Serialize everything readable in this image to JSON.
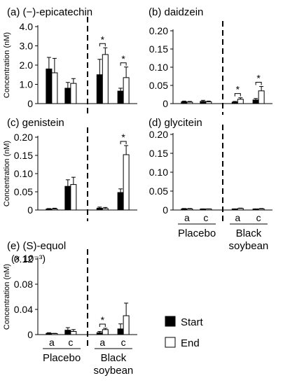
{
  "y_axis_label": "Concentration (nM)",
  "legend": {
    "start": "Start",
    "end": "End"
  },
  "group_labels": {
    "placebo": "Placebo",
    "black_soybean_line1": "Black",
    "black_soybean_line2": "soybean"
  },
  "sub_labels": {
    "a": "a",
    "c": "c"
  },
  "significance_mark": "*",
  "chart_data": [
    {
      "id": "a",
      "type": "bar",
      "title": "(a) (−)-epicatechin",
      "ylim": [
        0,
        4.0
      ],
      "yticks": [
        "0",
        "1.0",
        "2.0",
        "3.0",
        "4.0"
      ],
      "categories": [
        "Placebo a",
        "Placebo c",
        "Black soybean a",
        "Black soybean c"
      ],
      "series": [
        {
          "name": "Start",
          "values": [
            1.8,
            0.8,
            1.5,
            0.65
          ],
          "errors": [
            0.6,
            0.3,
            0.8,
            0.15
          ]
        },
        {
          "name": "End",
          "values": [
            1.6,
            1.05,
            2.55,
            1.35
          ],
          "errors": [
            0.75,
            0.25,
            0.35,
            0.55
          ]
        }
      ],
      "significant": [
        2,
        3
      ]
    },
    {
      "id": "b",
      "type": "bar",
      "title": "(b) daidzein",
      "ylim": [
        0,
        0.2
      ],
      "yticks": [
        "0",
        "0.05",
        "0.10",
        "0.15",
        "0.20"
      ],
      "categories": [
        "Placebo a",
        "Placebo c",
        "Black soybean a",
        "Black soybean c"
      ],
      "series": [
        {
          "name": "Start",
          "values": [
            0.005,
            0.006,
            0.004,
            0.01
          ],
          "errors": [
            0.002,
            0.003,
            0.002,
            0.004
          ]
        },
        {
          "name": "End",
          "values": [
            0.004,
            0.005,
            0.012,
            0.035
          ],
          "errors": [
            0.002,
            0.002,
            0.004,
            0.012
          ]
        }
      ],
      "significant": [
        2,
        3
      ]
    },
    {
      "id": "c",
      "type": "bar",
      "title": "(c) genistein",
      "ylim": [
        0,
        0.2
      ],
      "yticks": [
        "0",
        "0.05",
        "0.10",
        "0.15",
        "0.20"
      ],
      "categories": [
        "Placebo a",
        "Placebo c",
        "Black soybean a",
        "Black soybean c"
      ],
      "series": [
        {
          "name": "Start",
          "values": [
            0.002,
            0.065,
            0.005,
            0.048
          ],
          "errors": [
            0.002,
            0.018,
            0.003,
            0.01
          ]
        },
        {
          "name": "End",
          "values": [
            0.003,
            0.07,
            0.004,
            0.152
          ],
          "errors": [
            0.002,
            0.02,
            0.003,
            0.025
          ]
        }
      ],
      "significant": [
        3
      ]
    },
    {
      "id": "d",
      "type": "bar",
      "title": "(d) glycitein",
      "ylim": [
        0,
        0.2
      ],
      "yticks": [
        "0",
        "0.05",
        "0.10",
        "0.15",
        "0.20"
      ],
      "categories": [
        "Placebo a",
        "Placebo c",
        "Black soybean a",
        "Black soybean c"
      ],
      "series": [
        {
          "name": "Start",
          "values": [
            0.003,
            0.002,
            0.002,
            0.002
          ],
          "errors": [
            0.001,
            0.001,
            0.001,
            0.001
          ]
        },
        {
          "name": "End",
          "values": [
            0.003,
            0.002,
            0.004,
            0.003
          ],
          "errors": [
            0.001,
            0.001,
            0.001,
            0.001
          ]
        }
      ],
      "significant": []
    },
    {
      "id": "e",
      "type": "bar",
      "title": "(e) (S)-equol",
      "scale_note": "(× 10⁻³)",
      "ylim": [
        0,
        0.12
      ],
      "yticks": [
        "0",
        "0.04",
        "0.08",
        "0.12"
      ],
      "categories": [
        "Placebo a",
        "Placebo c",
        "Black soybean a",
        "Black soybean c"
      ],
      "series": [
        {
          "name": "Start",
          "values": [
            0.002,
            0.007,
            0.003,
            0.009
          ],
          "errors": [
            0.001,
            0.004,
            0.002,
            0.008
          ]
        },
        {
          "name": "End",
          "values": [
            0.001,
            0.005,
            0.008,
            0.03
          ],
          "errors": [
            0.001,
            0.003,
            0.002,
            0.02
          ]
        }
      ],
      "significant": [
        2
      ]
    }
  ]
}
